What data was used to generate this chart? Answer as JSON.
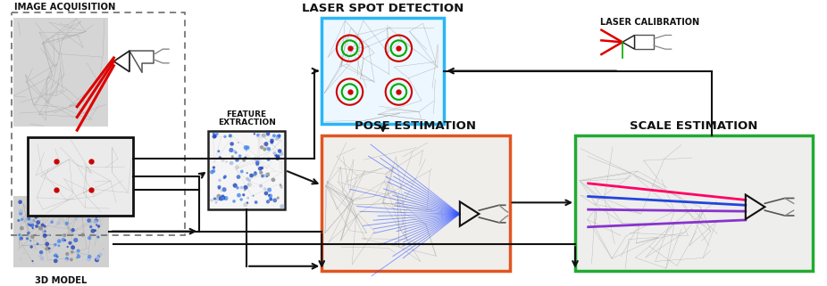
{
  "background": "#ffffff",
  "labels": {
    "image_acquisition": "IMAGE ACQUISITION",
    "laser_spot_detection": "LASER SPOT DETECTION",
    "laser_calibration": "LASER CALIBRATION",
    "feature_extraction": "FEATURE\nEXTRACTION",
    "pose_estimation": "POSE ESTIMATION",
    "scale_estimation": "SCALE ESTIMATION",
    "model_3d": "3D MODEL"
  },
  "box_colors": {
    "dashed_outer": "#777777",
    "image_frame": "#111111",
    "laser_spot": "#29b6f6",
    "pose_estimation": "#e05522",
    "scale_estimation": "#22aa33",
    "feature_box": "#222222"
  },
  "arrow_color": "#111111",
  "text_color": "#111111",
  "mesh_line": "#aaaaaa",
  "spot_red": "#cc0000",
  "spot_green": "#00aa00",
  "laser_red": "#dd0000",
  "laser_blue": "#2244dd",
  "laser_purple": "#8833cc",
  "laser_magenta": "#cc33aa"
}
